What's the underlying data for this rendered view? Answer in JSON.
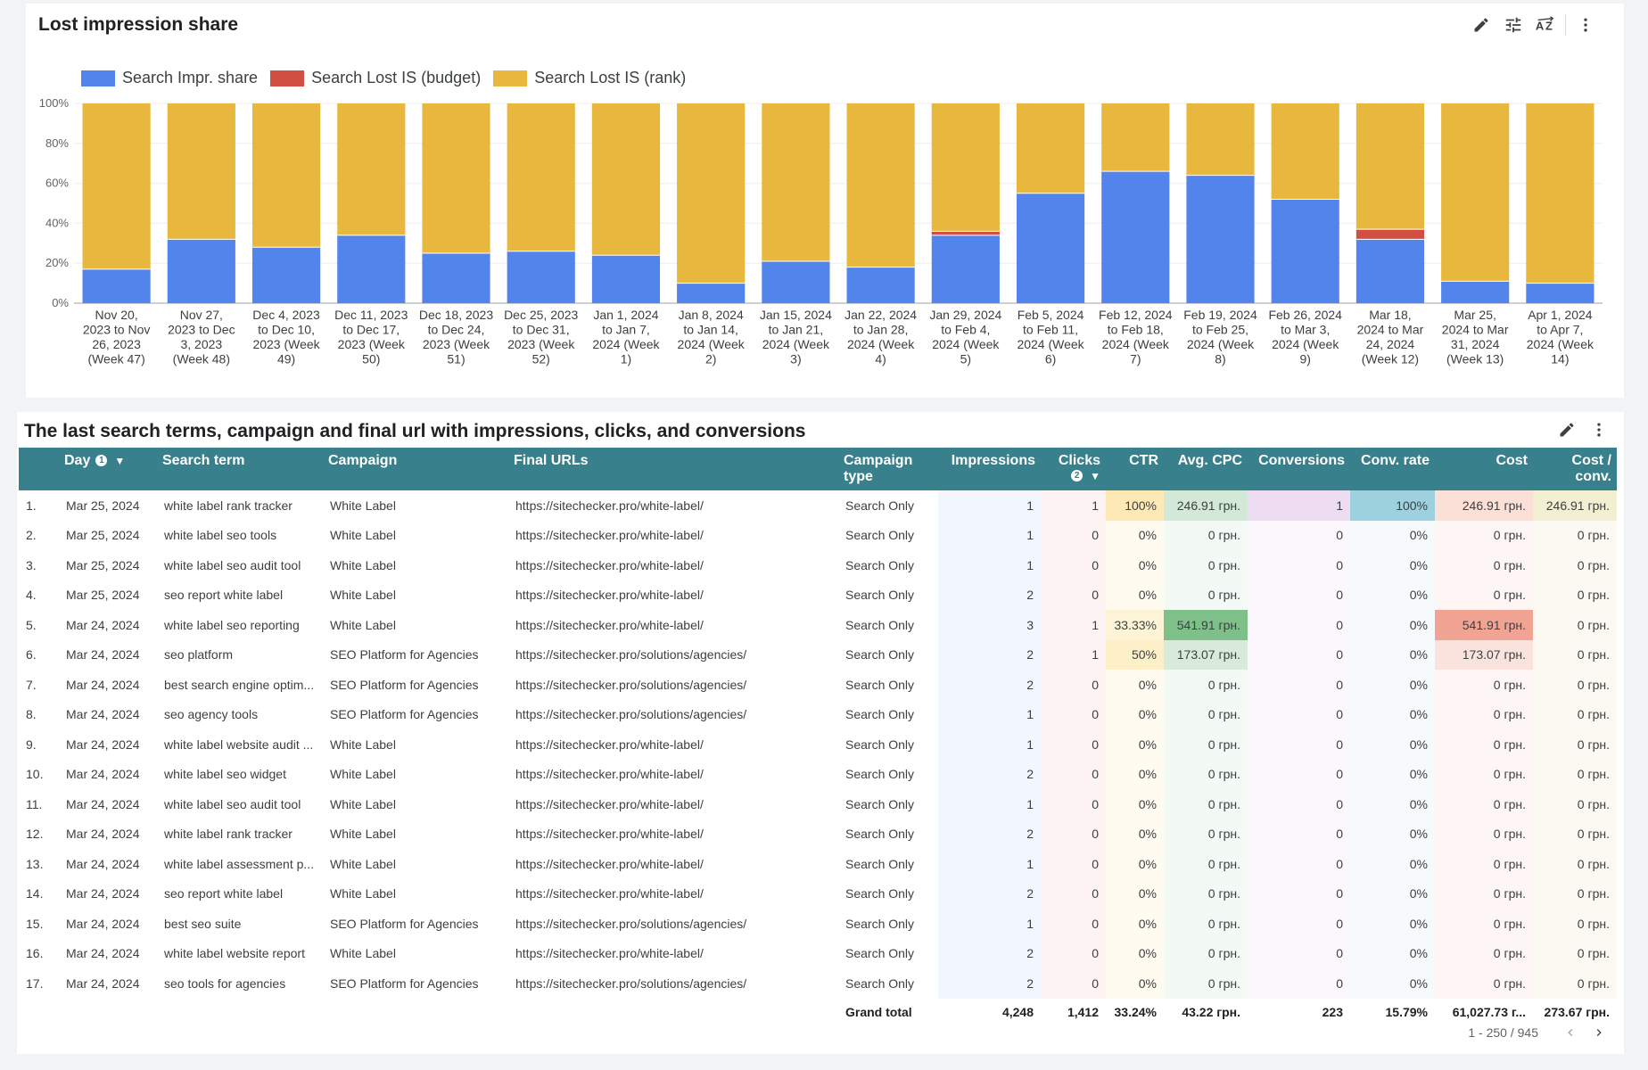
{
  "chart_card": {
    "title": "Lost impression share"
  },
  "chart_data": {
    "type": "bar",
    "stacked": true,
    "categories": [
      "Nov 20, 2023 to Nov 26, 2023 (Week 47)",
      "Nov 27, 2023 to Dec 3, 2023 (Week 48)",
      "Dec 4, 2023 to Dec 10, 2023 (Week 49)",
      "Dec 11, 2023 to Dec 17, 2023 (Week 50)",
      "Dec 18, 2023 to Dec 24, 2023 (Week 51)",
      "Dec 25, 2023 to Dec 31, 2023 (Week 52)",
      "Jan 1, 2024 to Jan 7, 2024 (Week 1)",
      "Jan 8, 2024 to Jan 14, 2024 (Week 2)",
      "Jan 15, 2024 to Jan 21, 2024 (Week 3)",
      "Jan 22, 2024 to Jan 28, 2024 (Week 4)",
      "Jan 29, 2024 to Feb 4, 2024 (Week 5)",
      "Feb 5, 2024 to Feb 11, 2024 (Week 6)",
      "Feb 12, 2024 to Feb 18, 2024 (Week 7)",
      "Feb 19, 2024 to Feb 25, 2024 (Week 8)",
      "Feb 26, 2024 to Mar 3, 2024 (Week 9)",
      "Mar 18, 2024 to Mar 24, 2024 (Week 12)",
      "Mar 25, 2024 to Mar 31, 2024 (Week 13)",
      "Apr 1, 2024 to Apr 7, 2024 (Week 14)"
    ],
    "category_lines": [
      [
        "Nov 20,",
        "2023 to Nov",
        "26, 2023",
        "(Week 47)"
      ],
      [
        "Nov 27,",
        "2023 to Dec",
        "3, 2023",
        "(Week 48)"
      ],
      [
        "Dec 4, 2023",
        "to Dec 10,",
        "2023 (Week",
        "49)"
      ],
      [
        "Dec 11, 2023",
        "to Dec 17,",
        "2023 (Week",
        "50)"
      ],
      [
        "Dec 18, 2023",
        "to Dec 24,",
        "2023 (Week",
        "51)"
      ],
      [
        "Dec 25, 2023",
        "to Dec 31,",
        "2023 (Week",
        "52)"
      ],
      [
        "Jan 1, 2024",
        "to Jan 7,",
        "2024 (Week",
        "1)"
      ],
      [
        "Jan 8, 2024",
        "to Jan 14,",
        "2024 (Week",
        "2)"
      ],
      [
        "Jan 15, 2024",
        "to Jan 21,",
        "2024 (Week",
        "3)"
      ],
      [
        "Jan 22, 2024",
        "to Jan 28,",
        "2024 (Week",
        "4)"
      ],
      [
        "Jan 29, 2024",
        "to Feb 4,",
        "2024 (Week",
        "5)"
      ],
      [
        "Feb 5, 2024",
        "to Feb 11,",
        "2024 (Week",
        "6)"
      ],
      [
        "Feb 12, 2024",
        "to Feb 18,",
        "2024 (Week",
        "7)"
      ],
      [
        "Feb 19, 2024",
        "to Feb 25,",
        "2024 (Week",
        "8)"
      ],
      [
        "Feb 26, 2024",
        "to Mar 3,",
        "2024 (Week",
        "9)"
      ],
      [
        "Mar 18,",
        "2024 to Mar",
        "24, 2024",
        "(Week 12)"
      ],
      [
        "Mar 25,",
        "2024 to Mar",
        "31, 2024",
        "(Week 13)"
      ],
      [
        "Apr 1, 2024",
        "to Apr 7,",
        "2024 (Week",
        "14)"
      ]
    ],
    "series": [
      {
        "name": "Search Impr. share",
        "color": "#5384eb",
        "values": [
          17,
          32,
          28,
          34,
          25,
          26,
          24,
          10,
          21,
          18,
          34,
          55,
          66,
          64,
          52,
          32,
          11,
          10
        ]
      },
      {
        "name": "Search Lost IS (budget)",
        "color": "#d04f42",
        "values": [
          0,
          0,
          0,
          0,
          0,
          0,
          0,
          0,
          0,
          0,
          2,
          0,
          0,
          0,
          0,
          5,
          0,
          0
        ]
      },
      {
        "name": "Search Lost IS (rank)",
        "color": "#e8b83e",
        "values": [
          83,
          68,
          72,
          66,
          75,
          74,
          76,
          90,
          79,
          82,
          64,
          45,
          34,
          36,
          48,
          63,
          89,
          90
        ]
      }
    ],
    "ylim": [
      0,
      100
    ],
    "yticks": [
      "0%",
      "20%",
      "40%",
      "60%",
      "80%",
      "100%"
    ],
    "ylabel": "",
    "xlabel": "",
    "legend_position": "top-left",
    "grid": true
  },
  "table_card": {
    "title": "The last search terms, campaign and final url with impressions, clicks, and conversions",
    "columns": [
      "",
      "Day",
      "Search term",
      "Campaign",
      "Final URLs",
      "Campaign type",
      "Impressions",
      "Clicks",
      "CTR",
      "Avg. CPC",
      "Conversions",
      "Conv. rate",
      "Cost",
      "Cost / conv."
    ],
    "header_lines": {
      "campaign_type": [
        "Campaign",
        "type"
      ],
      "clicks": [
        "Clicks"
      ],
      "cost_conv": [
        "Cost /",
        "conv."
      ]
    },
    "day_info_badge": "1",
    "clicks_info_badge": "2",
    "rows": [
      [
        "1.",
        "Mar 25, 2024",
        "white label rank tracker",
        "White Label",
        "https://sitechecker.pro/white-label/",
        "Search Only",
        "1",
        "1",
        "100%",
        "246.91 грн.",
        "1",
        "100%",
        "246.91 грн.",
        "246.91 грн."
      ],
      [
        "2.",
        "Mar 25, 2024",
        "white label seo tools",
        "White Label",
        "https://sitechecker.pro/white-label/",
        "Search Only",
        "1",
        "0",
        "0%",
        "0 грн.",
        "0",
        "0%",
        "0 грн.",
        "0 грн."
      ],
      [
        "3.",
        "Mar 25, 2024",
        "white label seo audit tool",
        "White Label",
        "https://sitechecker.pro/white-label/",
        "Search Only",
        "1",
        "0",
        "0%",
        "0 грн.",
        "0",
        "0%",
        "0 грн.",
        "0 грн."
      ],
      [
        "4.",
        "Mar 25, 2024",
        "seo report white label",
        "White Label",
        "https://sitechecker.pro/white-label/",
        "Search Only",
        "2",
        "0",
        "0%",
        "0 грн.",
        "0",
        "0%",
        "0 грн.",
        "0 грн."
      ],
      [
        "5.",
        "Mar 24, 2024",
        "white label seo reporting",
        "White Label",
        "https://sitechecker.pro/white-label/",
        "Search Only",
        "3",
        "1",
        "33.33%",
        "541.91 грн.",
        "0",
        "0%",
        "541.91 грн.",
        "0 грн."
      ],
      [
        "6.",
        "Mar 24, 2024",
        "seo platform",
        "SEO Platform for Agencies",
        "https://sitechecker.pro/solutions/agencies/",
        "Search Only",
        "2",
        "1",
        "50%",
        "173.07 грн.",
        "0",
        "0%",
        "173.07 грн.",
        "0 грн."
      ],
      [
        "7.",
        "Mar 24, 2024",
        "best search engine optim...",
        "SEO Platform for Agencies",
        "https://sitechecker.pro/solutions/agencies/",
        "Search Only",
        "2",
        "0",
        "0%",
        "0 грн.",
        "0",
        "0%",
        "0 грн.",
        "0 грн."
      ],
      [
        "8.",
        "Mar 24, 2024",
        "seo agency tools",
        "SEO Platform for Agencies",
        "https://sitechecker.pro/solutions/agencies/",
        "Search Only",
        "1",
        "0",
        "0%",
        "0 грн.",
        "0",
        "0%",
        "0 грн.",
        "0 грн."
      ],
      [
        "9.",
        "Mar 24, 2024",
        "white label website audit ...",
        "White Label",
        "https://sitechecker.pro/white-label/",
        "Search Only",
        "1",
        "0",
        "0%",
        "0 грн.",
        "0",
        "0%",
        "0 грн.",
        "0 грн."
      ],
      [
        "10.",
        "Mar 24, 2024",
        "white label seo widget",
        "White Label",
        "https://sitechecker.pro/white-label/",
        "Search Only",
        "2",
        "0",
        "0%",
        "0 грн.",
        "0",
        "0%",
        "0 грн.",
        "0 грн."
      ],
      [
        "11.",
        "Mar 24, 2024",
        "white label seo audit tool",
        "White Label",
        "https://sitechecker.pro/white-label/",
        "Search Only",
        "1",
        "0",
        "0%",
        "0 грн.",
        "0",
        "0%",
        "0 грн.",
        "0 грн."
      ],
      [
        "12.",
        "Mar 24, 2024",
        "white label rank tracker",
        "White Label",
        "https://sitechecker.pro/white-label/",
        "Search Only",
        "2",
        "0",
        "0%",
        "0 грн.",
        "0",
        "0%",
        "0 грн.",
        "0 грн."
      ],
      [
        "13.",
        "Mar 24, 2024",
        "white label assessment p...",
        "White Label",
        "https://sitechecker.pro/white-label/",
        "Search Only",
        "1",
        "0",
        "0%",
        "0 грн.",
        "0",
        "0%",
        "0 грн.",
        "0 грн."
      ],
      [
        "14.",
        "Mar 24, 2024",
        "seo report white label",
        "White Label",
        "https://sitechecker.pro/white-label/",
        "Search Only",
        "2",
        "0",
        "0%",
        "0 грн.",
        "0",
        "0%",
        "0 грн.",
        "0 грн."
      ],
      [
        "15.",
        "Mar 24, 2024",
        "best seo suite",
        "SEO Platform for Agencies",
        "https://sitechecker.pro/solutions/agencies/",
        "Search Only",
        "1",
        "0",
        "0%",
        "0 грн.",
        "0",
        "0%",
        "0 грн.",
        "0 грн."
      ],
      [
        "16.",
        "Mar 24, 2024",
        "white label website report",
        "White Label",
        "https://sitechecker.pro/white-label/",
        "Search Only",
        "2",
        "0",
        "0%",
        "0 грн.",
        "0",
        "0%",
        "0 грн.",
        "0 грн."
      ],
      [
        "17.",
        "Mar 24, 2024",
        "seo tools for agencies",
        "SEO Platform for Agencies",
        "https://sitechecker.pro/solutions/agencies/",
        "Search Only",
        "2",
        "0",
        "0%",
        "0 грн.",
        "0",
        "0%",
        "0 грн.",
        "0 грн."
      ]
    ],
    "grand_total": {
      "label": "Grand total",
      "impressions": "4,248",
      "clicks": "1,412",
      "ctr": "33.24%",
      "avg_cpc": "43.22 грн.",
      "conversions": "223",
      "conv_rate": "15.79%",
      "cost": "61,027.73 г...",
      "cost_conv": "273.67 грн."
    },
    "pagination": "1 - 250 / 945"
  },
  "colors": {
    "header_bg": "#38808c",
    "impr_share": "#5384eb",
    "lost_budget": "#d04f42",
    "lost_rank": "#e8b83e"
  },
  "icons": [
    "edit-icon",
    "filter-icon",
    "sort-az-icon",
    "more-vert-icon",
    "chevron-left-icon",
    "chevron-right-icon"
  ]
}
